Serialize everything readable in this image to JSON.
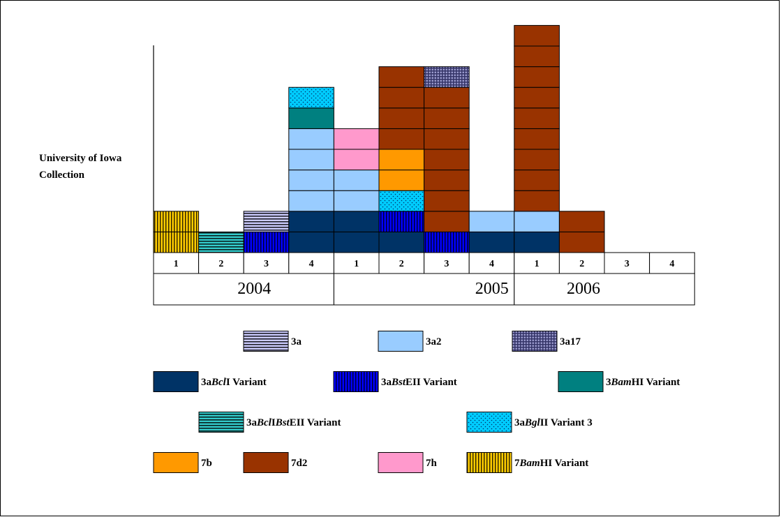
{
  "chart_data": {
    "type": "bar",
    "stacked": true,
    "ylabel": "University of Iowa Collection",
    "quarters": [
      "1",
      "2",
      "3",
      "4",
      "1",
      "2",
      "3",
      "4",
      "1",
      "2",
      "3",
      "4"
    ],
    "years": [
      "2004",
      "2005",
      "2006"
    ],
    "series": [
      {
        "name": "3a",
        "color": "#ccccff",
        "pattern": "hstripe"
      },
      {
        "name": "3a2",
        "color": "#99ccff",
        "pattern": "solid"
      },
      {
        "name": "3a17",
        "color": "#333366",
        "pattern": "grid"
      },
      {
        "name": "3aBclI Variant",
        "color": "#003366",
        "pattern": "solid"
      },
      {
        "name": "3aBstEII Variant",
        "color": "#0000ff",
        "pattern": "vstripe"
      },
      {
        "name": "3BamHI Variant",
        "color": "#008080",
        "pattern": "solid"
      },
      {
        "name": "3aBclIBstEII Variant",
        "color": "#33cccc",
        "pattern": "hstripe"
      },
      {
        "name": "3aBglII Variant 3",
        "color": "#00ccff",
        "pattern": "dots"
      },
      {
        "name": "7b",
        "color": "#ff9900",
        "pattern": "solid"
      },
      {
        "name": "7d2",
        "color": "#993300",
        "pattern": "solid"
      },
      {
        "name": "7h",
        "color": "#ff99cc",
        "pattern": "solid"
      },
      {
        "name": "7BamHI Variant",
        "color": "#ffcc00",
        "pattern": "vstripe"
      }
    ],
    "stacks": [
      [
        "7BamHI Variant",
        "7BamHI Variant"
      ],
      [
        "3aBclIBstEII Variant"
      ],
      [
        "3aBstEII Variant",
        "3a"
      ],
      [
        "3aBclI Variant",
        "3aBclI Variant",
        "3a2",
        "3a2",
        "3a2",
        "3a2",
        "3BamHI Variant",
        "3aBglII Variant 3"
      ],
      [
        "3aBclI Variant",
        "3aBclI Variant",
        "3a2",
        "3a2",
        "7h",
        "7h"
      ],
      [
        "3aBclI Variant",
        "3aBstEII Variant",
        "3aBglII Variant 3",
        "7b",
        "7b",
        "7d2",
        "7d2",
        "7d2",
        "7d2"
      ],
      [
        "3aBstEII Variant",
        "7d2",
        "7d2",
        "7d2",
        "7d2",
        "7d2",
        "7d2",
        "7d2",
        "3a17"
      ],
      [
        "3aBclI Variant",
        "3a2"
      ],
      [
        "3aBclI Variant",
        "3a2",
        "7d2",
        "7d2",
        "7d2",
        "7d2",
        "7d2",
        "7d2",
        "7d2",
        "7d2",
        "7d2"
      ],
      [
        "7d2",
        "7d2"
      ],
      [],
      []
    ],
    "legend": [
      [
        {
          "series": "3a",
          "parts": [
            {
              "t": "3a",
              "i": false
            }
          ]
        },
        {
          "series": "3a2",
          "parts": [
            {
              "t": "3a2",
              "i": false
            }
          ]
        },
        {
          "series": "3a17",
          "parts": [
            {
              "t": "3a17",
              "i": false
            }
          ]
        }
      ],
      [
        {
          "series": "3aBclI Variant",
          "parts": [
            {
              "t": "3a",
              "i": false
            },
            {
              "t": "Bcl",
              "i": true
            },
            {
              "t": "I Variant",
              "i": false
            }
          ]
        },
        {
          "series": "3aBstEII Variant",
          "parts": [
            {
              "t": "3a",
              "i": false
            },
            {
              "t": "Bst",
              "i": true
            },
            {
              "t": "EII Variant",
              "i": false
            }
          ]
        },
        {
          "series": "3BamHI Variant",
          "parts": [
            {
              "t": "3",
              "i": false
            },
            {
              "t": "Bam",
              "i": true
            },
            {
              "t": "HI Variant",
              "i": false
            }
          ]
        }
      ],
      [
        {
          "series": "3aBclIBstEII Variant",
          "parts": [
            {
              "t": "3a",
              "i": false
            },
            {
              "t": "Bcl",
              "i": true
            },
            {
              "t": "I",
              "i": false
            },
            {
              "t": "Bst",
              "i": true
            },
            {
              "t": "EII Variant",
              "i": false
            }
          ]
        },
        {
          "series": "3aBglII Variant 3",
          "parts": [
            {
              "t": "3a",
              "i": false
            },
            {
              "t": "Bgl",
              "i": true
            },
            {
              "t": "II Variant 3",
              "i": false
            }
          ]
        }
      ],
      [
        {
          "series": "7b",
          "parts": [
            {
              "t": "7b",
              "i": false
            }
          ]
        },
        {
          "series": "7d2",
          "parts": [
            {
              "t": "7d2",
              "i": false
            }
          ]
        },
        {
          "series": "7h",
          "parts": [
            {
              "t": "7h",
              "i": false
            }
          ]
        },
        {
          "series": "7BamHI Variant",
          "parts": [
            {
              "t": "7",
              "i": false
            },
            {
              "t": "Bam",
              "i": true
            },
            {
              "t": "HI Variant",
              "i": false
            }
          ]
        }
      ]
    ]
  }
}
